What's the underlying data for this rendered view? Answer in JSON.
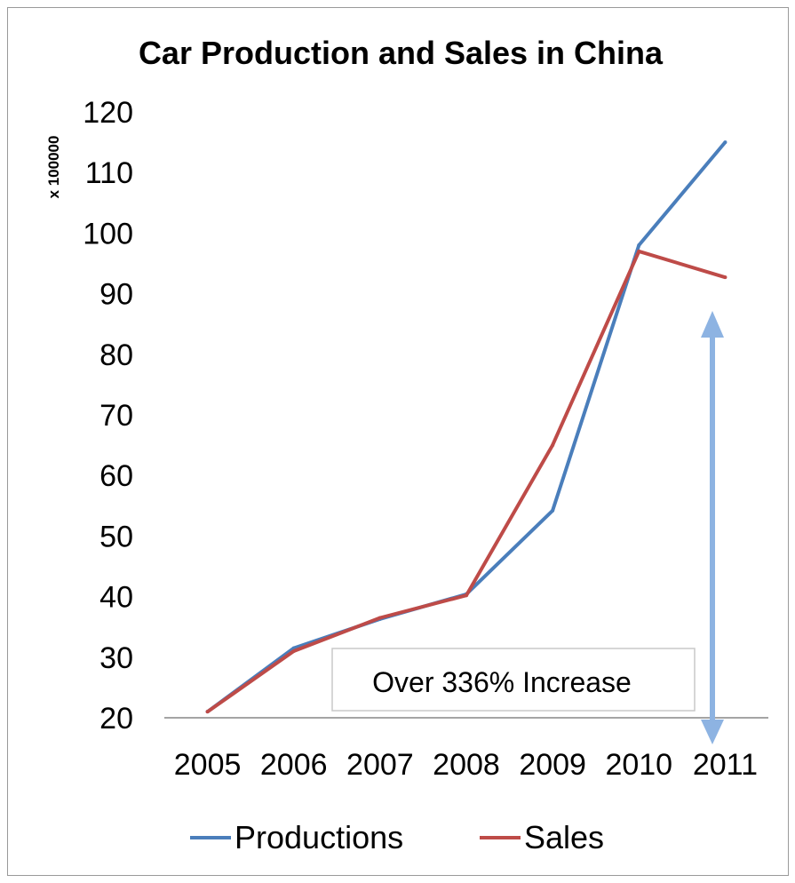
{
  "chart_data": {
    "type": "line",
    "title": "Car Production and Sales in China",
    "ylabel": "x 100000",
    "xlabel": "",
    "categories": [
      "2005",
      "2006",
      "2007",
      "2008",
      "2009",
      "2010",
      "2011"
    ],
    "series": [
      {
        "name": "Productions",
        "color": "#4a7ebb",
        "values": [
          21,
          31.5,
          36.3,
          40.4,
          54.2,
          98,
          115
        ]
      },
      {
        "name": "Sales",
        "color": "#be4b48",
        "values": [
          21,
          31,
          36.5,
          40.2,
          65,
          97,
          92.7
        ]
      }
    ],
    "ylim": [
      20,
      120
    ],
    "yticks": [
      "20",
      "30",
      "40",
      "50",
      "60",
      "70",
      "80",
      "90",
      "100",
      "110",
      "120"
    ],
    "grid": false,
    "legend": "bottom",
    "annotation": {
      "text": "Over 336% Increase",
      "arrow_color": "#8db3e2"
    }
  }
}
